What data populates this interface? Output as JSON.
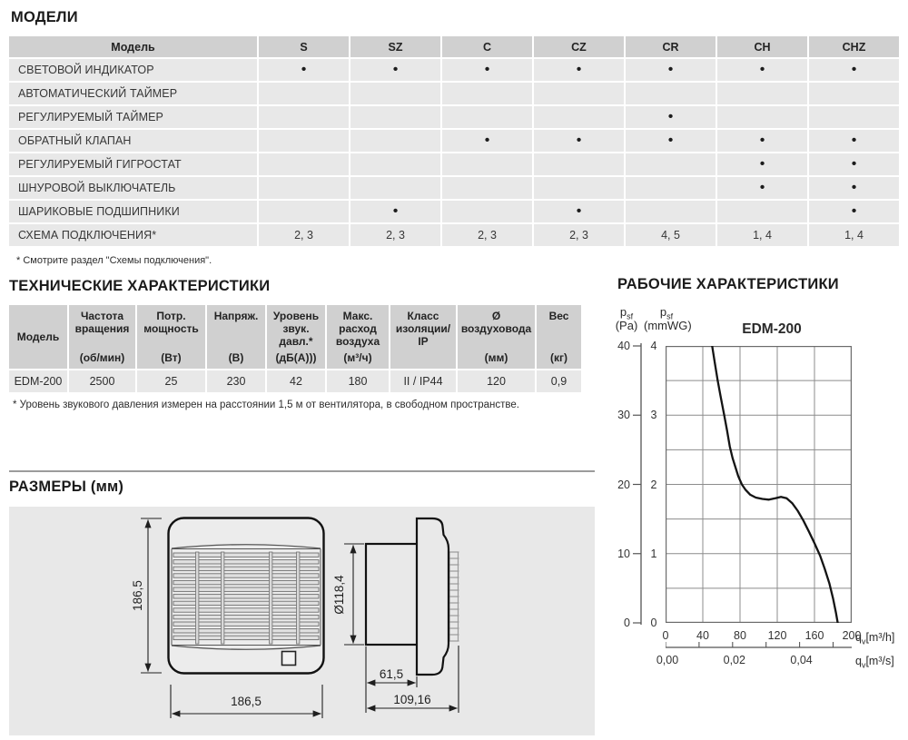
{
  "models_section": {
    "title": "МОДЕЛИ",
    "table": {
      "first_header": "Модель",
      "columns": [
        "S",
        "SZ",
        "C",
        "CZ",
        "CR",
        "CH",
        "CHZ"
      ],
      "rows": [
        {
          "label": "СВЕТОВОЙ ИНДИКАТОР",
          "cells": [
            "•",
            "•",
            "•",
            "•",
            "•",
            "•",
            "•"
          ]
        },
        {
          "label": "АВТОМАТИЧЕСКИЙ ТАЙМЕР",
          "cells": [
            "",
            "",
            "",
            "",
            "",
            "",
            ""
          ]
        },
        {
          "label": "РЕГУЛИРУЕМЫЙ ТАЙМЕР",
          "cells": [
            "",
            "",
            "",
            "",
            "•",
            "",
            ""
          ]
        },
        {
          "label": "ОБРАТНЫЙ КЛАПАН",
          "cells": [
            "",
            "",
            "•",
            "•",
            "•",
            "•",
            "•"
          ]
        },
        {
          "label": "РЕГУЛИРУЕМЫЙ ГИГРОСТАТ",
          "cells": [
            "",
            "",
            "",
            "",
            "",
            "•",
            "•"
          ]
        },
        {
          "label": "ШНУРОВОЙ ВЫКЛЮЧАТЕЛЬ",
          "cells": [
            "",
            "",
            "",
            "",
            "",
            "•",
            "•"
          ]
        },
        {
          "label": "ШАРИКОВЫЕ ПОДШИПНИКИ",
          "cells": [
            "",
            "•",
            "",
            "•",
            "",
            "",
            "•"
          ]
        },
        {
          "label": "СХЕМА ПОДКЛЮЧЕНИЯ*",
          "cells": [
            "2, 3",
            "2, 3",
            "2, 3",
            "2, 3",
            "4, 5",
            "1, 4",
            "1, 4"
          ]
        }
      ]
    },
    "footnote": "* Смотрите раздел \"Схемы подключения\"."
  },
  "tech_section": {
    "title": "ТЕХНИЧЕСКИЕ ХАРАКТЕРИСТИКИ",
    "table": {
      "headers": [
        {
          "name": "Модель",
          "unit": ""
        },
        {
          "name": "Частота вращения",
          "unit": "(об/мин)"
        },
        {
          "name": "Потр. мощность",
          "unit": "(Вт)"
        },
        {
          "name": "Напряж.",
          "unit": "(В)"
        },
        {
          "name": "Уровень звук. давл.*",
          "unit": "(дБ(А)))"
        },
        {
          "name": "Макс. расход воздуха",
          "unit": "(м³/ч)"
        },
        {
          "name": "Класс изоляции/ IP",
          "unit": ""
        },
        {
          "name": "Ø воздуховода",
          "unit": "(мм)"
        },
        {
          "name": "Вес",
          "unit": "(кг)"
        }
      ],
      "row": [
        "EDM-200",
        "2500",
        "25",
        "230",
        "42",
        "180",
        "II / IP44",
        "120",
        "0,9"
      ]
    },
    "footnote": "* Уровень звукового давления измерен на расстоянии 1,5 м от вентилятора, в свободном пространстве."
  },
  "performance_section": {
    "title": "РАБОЧИЕ ХАРАКТЕРИСТИКИ",
    "label_parts": {
      "p": "p",
      "sf": "sf",
      "pa": "(Pa)",
      "mmwg": "(mmWG)",
      "q": "q",
      "v": "v",
      "unit_h": "[m³/h]",
      "unit_s": "[m³/s]"
    }
  },
  "dimensions_section": {
    "title": "РАЗМЕРЫ (мм)",
    "front_view": {
      "height": "186,5",
      "width": "186,5"
    },
    "side_view": {
      "diameter": "Ø118,4",
      "duct_depth": "61,5",
      "total_depth": "109,16"
    }
  },
  "chart_data": {
    "type": "line",
    "title": "EDM-200",
    "xlabel": "qv [m³/h]",
    "x2label": "qv [m³/s]",
    "ylabel_left": "psf (Pa)",
    "ylabel_right": "psf (mmWG)",
    "xlim": [
      0,
      200
    ],
    "ylim_pa": [
      0,
      40
    ],
    "ylim_mmwg": [
      0,
      4
    ],
    "x_ticks_m3h": [
      0,
      40,
      80,
      120,
      160,
      200
    ],
    "x2_ticks_m3s": [
      "0,00",
      "0,02",
      "0,04"
    ],
    "x2_tick_step_m3h": 36,
    "y_ticks_pa": [
      40,
      30,
      20,
      10,
      0
    ],
    "y_ticks_mmwg": [
      4,
      3,
      2,
      1,
      0
    ],
    "grid": true,
    "grid_x_step_m3h": 40,
    "grid_y_step_mmwg": 0.5,
    "legend_position": "none",
    "series": [
      {
        "name": "EDM-200",
        "x_m3h": [
          50,
          53,
          56,
          59,
          63,
          66,
          69,
          72,
          75,
          78,
          82,
          86,
          91,
          97,
          104,
          111,
          118,
          124,
          130,
          136,
          142,
          148,
          154,
          160,
          166,
          171,
          176,
          180,
          183,
          185
        ],
        "y_mmwg": [
          4.0,
          3.75,
          3.5,
          3.28,
          3.0,
          2.78,
          2.55,
          2.38,
          2.25,
          2.12,
          2.0,
          1.92,
          1.85,
          1.81,
          1.79,
          1.78,
          1.8,
          1.82,
          1.8,
          1.73,
          1.62,
          1.48,
          1.32,
          1.15,
          0.97,
          0.78,
          0.57,
          0.35,
          0.15,
          0.0
        ]
      }
    ]
  }
}
